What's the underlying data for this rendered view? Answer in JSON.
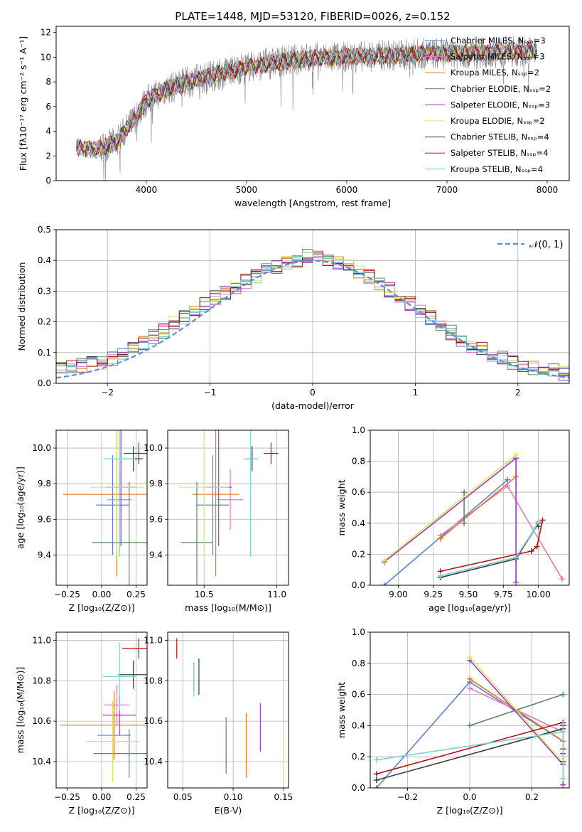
{
  "chart_data": [
    {
      "type": "line",
      "title": "PLATE=1448, MJD=53120, FIBERID=0026, z=0.152",
      "xlabel": "wavelength [Angstrom, rest frame]",
      "ylabel": "Flux [fλ10⁻¹⁷ erg cm⁻² s⁻¹ A⁻¹]",
      "xlim": [
        3100,
        8220
      ],
      "ylim": [
        0,
        12.5
      ],
      "xticks": [
        "4000",
        "5000",
        "6000",
        "7000",
        "8000"
      ],
      "yticks": [
        "0",
        "2",
        "4",
        "6",
        "8",
        "10",
        "12"
      ],
      "legend_position": "upper-right",
      "series": [
        {
          "name": "Chabrier MILES, Nₛₛₚ=3",
          "color": "#5b7fd1"
        },
        {
          "name": "Salpeter MILES, Nₛₛₚ=3",
          "color": "#e377c2"
        },
        {
          "name": "Kroupa MILES, Nₛₛₚ=2",
          "color": "#e0782a"
        },
        {
          "name": "Chabrier ELODIE, Nₛₛₚ=2",
          "color": "#5a8a5a"
        },
        {
          "name": "Salpeter ELODIE, Nₛₛₚ=3",
          "color": "#9b3bbf"
        },
        {
          "name": "Kroupa ELODIE, Nₛₛₚ=2",
          "color": "#dde35a"
        },
        {
          "name": "Chabrier STELIB, Nₛₛₚ=4",
          "color": "#3c3c3c"
        },
        {
          "name": "Salpeter STELIB, Nₛₛₚ=4",
          "color": "#b01515"
        },
        {
          "name": "Kroupa STELIB, Nₛₛₚ=4",
          "color": "#7ecfd6"
        }
      ],
      "spectrum_anchor_points": {
        "wavelength": [
          3300,
          3500,
          3700,
          3900,
          4000,
          4200,
          4500,
          4800,
          5000,
          5300,
          5600,
          6000,
          6300,
          6600,
          6800,
          7000,
          7400,
          7800,
          8000
        ],
        "flux": [
          2.7,
          2.5,
          3.1,
          5.2,
          6.5,
          7.4,
          8.2,
          8.8,
          9.2,
          9.6,
          9.9,
          10.0,
          10.1,
          10.2,
          10.3,
          10.3,
          10.4,
          10.5,
          10.5
        ]
      }
    },
    {
      "type": "line",
      "xlabel": "(data-model)/error",
      "ylabel": "Normed distribution",
      "xlim": [
        -2.5,
        2.5
      ],
      "ylim": [
        0,
        0.5
      ],
      "xticks": [
        "−2",
        "−1",
        "0",
        "1",
        "2"
      ],
      "yticks": [
        "0.0",
        "0.1",
        "0.2",
        "0.3",
        "0.4",
        "0.5"
      ],
      "legend": [
        {
          "name": "𝒩(0, 1)",
          "color": "#5b8fd6",
          "style": "dashed"
        }
      ],
      "legend_position": "upper-right",
      "histogram_envelope": {
        "x": [
          -2.5,
          -2.0,
          -1.5,
          -1.0,
          -0.5,
          0.0,
          0.5,
          1.0,
          1.5,
          2.0,
          2.5
        ],
        "y": [
          0.05,
          0.07,
          0.16,
          0.27,
          0.36,
          0.42,
          0.36,
          0.25,
          0.13,
          0.06,
          0.03
        ]
      }
    },
    {
      "type": "scatter",
      "xlabel": "Z [log₁₀(Z/Z⊙)]",
      "ylabel": "age  [log₁₀(age/yr)]",
      "xlim": [
        -0.33,
        0.33
      ],
      "ylim": [
        9.23,
        10.1
      ],
      "xticks": [
        "−0.25",
        "0.00",
        "0.25"
      ],
      "yticks": [
        "9.4",
        "9.6",
        "9.8",
        "10.0"
      ],
      "points": [
        {
          "x": 0.08,
          "y": 9.68,
          "xerr": 0.12,
          "yerr": 0.28,
          "series": "Chabrier MILES"
        },
        {
          "x": 0.13,
          "y": 9.71,
          "xerr": 0.09,
          "yerr": 0.17,
          "series": "Salpeter MILES"
        },
        {
          "x": 0.11,
          "y": 9.74,
          "xerr": 0.39,
          "yerr": 0.46,
          "series": "Kroupa MILES"
        },
        {
          "x": 0.2,
          "y": 9.47,
          "xerr": 0.27,
          "yerr": 0.34,
          "series": "Chabrier ELODIE"
        },
        {
          "x": 0.14,
          "y": 9.78,
          "xerr": 0.11,
          "yerr": 0.33,
          "series": "Salpeter ELODIE"
        },
        {
          "x": 0.11,
          "y": 9.78,
          "xerr": 0.19,
          "yerr": 0.39,
          "series": "Kroupa ELODIE"
        },
        {
          "x": 0.23,
          "y": 9.94,
          "xerr": 0.07,
          "yerr": 0.07,
          "series": "Chabrier STELIB"
        },
        {
          "x": 0.27,
          "y": 9.97,
          "xerr": 0.11,
          "yerr": 0.06,
          "series": "Salpeter STELIB"
        },
        {
          "x": 0.13,
          "y": 9.94,
          "xerr": 0.11,
          "yerr": 0.55,
          "series": "Kroupa STELIB"
        }
      ]
    },
    {
      "type": "scatter",
      "xlabel": "mass [log₁₀(M/M⊙)]",
      "xlim": [
        10.25,
        11.08
      ],
      "ylim": [
        9.23,
        10.1
      ],
      "xticks": [
        "10.5",
        "11.0"
      ],
      "yticks": [
        "9.4",
        "9.6",
        "9.8",
        "10.0"
      ],
      "points": [
        {
          "x": 10.56,
          "y": 9.68,
          "xerr": 0.11,
          "yerr": 0.28,
          "series": "Chabrier MILES"
        },
        {
          "x": 10.68,
          "y": 9.71,
          "xerr": 0.09,
          "yerr": 0.17,
          "series": "Salpeter MILES"
        },
        {
          "x": 10.58,
          "y": 9.74,
          "xerr": 0.16,
          "yerr": 0.46,
          "series": "Kroupa MILES"
        },
        {
          "x": 10.45,
          "y": 9.47,
          "xerr": 0.11,
          "yerr": 0.34,
          "series": "Chabrier ELODIE"
        },
        {
          "x": 10.6,
          "y": 9.78,
          "xerr": 0.09,
          "yerr": 0.33,
          "series": "Salpeter ELODIE"
        },
        {
          "x": 10.5,
          "y": 9.78,
          "xerr": 0.17,
          "yerr": 0.39,
          "series": "Kroupa ELODIE"
        },
        {
          "x": 10.83,
          "y": 9.94,
          "xerr": 0.04,
          "yerr": 0.07,
          "series": "Chabrier STELIB"
        },
        {
          "x": 10.96,
          "y": 9.97,
          "xerr": 0.05,
          "yerr": 0.06,
          "series": "Salpeter STELIB"
        },
        {
          "x": 10.82,
          "y": 9.94,
          "xerr": 0.05,
          "yerr": 0.55,
          "series": "Kroupa STELIB"
        }
      ]
    },
    {
      "type": "line",
      "xlabel": "age  [log₁₀(age/yr)]",
      "ylabel": "mass weight",
      "xlim": [
        8.8,
        10.22
      ],
      "ylim": [
        0,
        1
      ],
      "xticks": [
        "9.00",
        "9.25",
        "9.50",
        "9.75",
        "10.00"
      ],
      "yticks": [
        "0.0",
        "0.2",
        "0.4",
        "0.6",
        "0.8",
        "1.0"
      ],
      "series": [
        {
          "name": "Chabrier MILES",
          "x": [
            8.9,
            9.78
          ],
          "y": [
            0.0,
            0.68
          ]
        },
        {
          "name": "Salpeter MILES",
          "x": [
            9.3,
            9.78,
            10.17
          ],
          "y": [
            0.32,
            0.64,
            0.04
          ]
        },
        {
          "name": "Kroupa MILES",
          "x": [
            9.3,
            9.84
          ],
          "y": [
            0.3,
            0.7
          ]
        },
        {
          "name": "Chabrier ELODIE",
          "x": [
            9.47,
            9.47
          ],
          "y": [
            0.4,
            0.6
          ]
        },
        {
          "name": "Salpeter ELODIE",
          "x": [
            8.9,
            9.84,
            9.84
          ],
          "y": [
            0.15,
            0.82,
            0.02
          ]
        },
        {
          "name": "Kroupa ELODIE",
          "x": [
            8.9,
            9.84
          ],
          "y": [
            0.16,
            0.84
          ]
        },
        {
          "name": "Chabrier STELIB",
          "x": [
            9.3,
            9.84,
            10.0,
            10.0
          ],
          "y": [
            0.05,
            0.17,
            0.4,
            0.38
          ]
        },
        {
          "name": "Salpeter STELIB",
          "x": [
            9.3,
            9.95,
            9.99,
            10.03
          ],
          "y": [
            0.09,
            0.22,
            0.25,
            0.42
          ]
        },
        {
          "name": "Kroupa STELIB",
          "x": [
            9.3,
            9.84,
            9.97,
            10.0
          ],
          "y": [
            0.06,
            0.18,
            0.36,
            0.41
          ]
        }
      ]
    },
    {
      "type": "scatter",
      "xlabel": "Z [log₁₀(Z/Z⊙)]",
      "ylabel": "mass [log₁₀(M/M⊙)]",
      "xlim": [
        -0.33,
        0.33
      ],
      "ylim": [
        10.27,
        11.04
      ],
      "xticks": [
        "−0.25",
        "0.00",
        "0.25"
      ],
      "yticks": [
        "10.4",
        "10.6",
        "10.8",
        "11.0"
      ],
      "points": [
        {
          "x": 0.09,
          "y": 10.53,
          "xerr": 0.12,
          "yerr": 0.12,
          "series": "Chabrier MILES"
        },
        {
          "x": 0.11,
          "y": 10.68,
          "xerr": 0.09,
          "yerr": 0.1,
          "series": "Salpeter MILES"
        },
        {
          "x": 0.09,
          "y": 10.58,
          "xerr": 0.39,
          "yerr": 0.17,
          "series": "Kroupa MILES"
        },
        {
          "x": 0.2,
          "y": 10.44,
          "xerr": 0.26,
          "yerr": 0.12,
          "series": "Chabrier ELODIE"
        },
        {
          "x": 0.13,
          "y": 10.63,
          "xerr": 0.12,
          "yerr": 0.1,
          "series": "Salpeter ELODIE"
        },
        {
          "x": 0.08,
          "y": 10.5,
          "xerr": 0.19,
          "yerr": 0.2,
          "series": "Kroupa ELODIE"
        },
        {
          "x": 0.23,
          "y": 10.83,
          "xerr": 0.11,
          "yerr": 0.07,
          "series": "Chabrier STELIB"
        },
        {
          "x": 0.27,
          "y": 10.96,
          "xerr": 0.12,
          "yerr": 0.05,
          "series": "Salpeter STELIB"
        },
        {
          "x": 0.13,
          "y": 10.82,
          "xerr": 0.12,
          "yerr": 0.17,
          "series": "Kroupa STELIB"
        }
      ]
    },
    {
      "type": "scatter",
      "xlabel": "E(B-V)",
      "xlim": [
        0.035,
        0.155
      ],
      "ylim": [
        10.27,
        11.04
      ],
      "xticks": [
        "0.05",
        "0.10",
        "0.15"
      ],
      "yticks": [
        "10.4",
        "10.6",
        "10.8",
        "11.0"
      ],
      "points": [
        {
          "x": 0.061,
          "y": 10.82,
          "yerr": 0.07,
          "series": "Chabrier MILES"
        },
        {
          "x": 0.113,
          "y": 10.48,
          "yerr": 0.16,
          "series": "Kroupa MILES"
        },
        {
          "x": 0.093,
          "y": 10.48,
          "yerr": 0.14,
          "series": "Chabrier ELODIE"
        },
        {
          "x": 0.127,
          "y": 10.57,
          "yerr": 0.12,
          "series": "Salpeter ELODIE"
        },
        {
          "x": 0.15,
          "y": 10.41,
          "yerr": 0.13,
          "series": "Kroupa ELODIE"
        },
        {
          "x": 0.066,
          "y": 10.82,
          "yerr": 0.09,
          "series": "Chabrier STELIB"
        },
        {
          "x": 0.044,
          "y": 10.96,
          "yerr": 0.05,
          "series": "Salpeter STELIB"
        },
        {
          "x": 0.061,
          "y": 10.8,
          "yerr": 0.08,
          "series": "Kroupa STELIB"
        }
      ]
    },
    {
      "type": "line",
      "xlabel": "Z [log₁₀(Z/Z⊙)]",
      "ylabel": "mass weight",
      "xlim": [
        -0.32,
        0.32
      ],
      "ylim": [
        0,
        1
      ],
      "xticks": [
        "−0.2",
        "0.0",
        "0.2"
      ],
      "yticks": [
        "0.0",
        "0.2",
        "0.4",
        "0.6",
        "0.8",
        "1.0"
      ],
      "series": [
        {
          "name": "Chabrier MILES",
          "x": [
            -0.3,
            0.0,
            0.3
          ],
          "y": [
            0.0,
            0.68,
            0.3
          ]
        },
        {
          "name": "Salpeter MILES",
          "x": [
            0.0,
            0.3
          ],
          "y": [
            0.64,
            0.36
          ]
        },
        {
          "name": "Kroupa MILES",
          "x": [
            0.0,
            0.3
          ],
          "y": [
            0.7,
            0.3
          ]
        },
        {
          "name": "Chabrier ELODIE",
          "x": [
            0.0,
            0.3
          ],
          "y": [
            0.4,
            0.6
          ]
        },
        {
          "name": "Salpeter ELODIE",
          "x": [
            0.0,
            0.3,
            0.3
          ],
          "y": [
            0.82,
            0.15,
            0.02
          ]
        },
        {
          "name": "Kroupa ELODIE",
          "x": [
            0.0,
            0.3
          ],
          "y": [
            0.84,
            0.16
          ]
        },
        {
          "name": "Chabrier STELIB",
          "x": [
            -0.3,
            0.3,
            0.3,
            0.3
          ],
          "y": [
            0.05,
            0.38,
            0.4,
            0.17
          ]
        },
        {
          "name": "Salpeter STELIB",
          "x": [
            -0.3,
            0.3,
            0.3,
            0.3
          ],
          "y": [
            0.09,
            0.42,
            0.25,
            0.22
          ]
        },
        {
          "name": "Kroupa STELIB",
          "x": [
            -0.3,
            0.3,
            0.3,
            0.3
          ],
          "y": [
            0.18,
            0.36,
            0.41,
            0.06
          ]
        }
      ]
    }
  ]
}
